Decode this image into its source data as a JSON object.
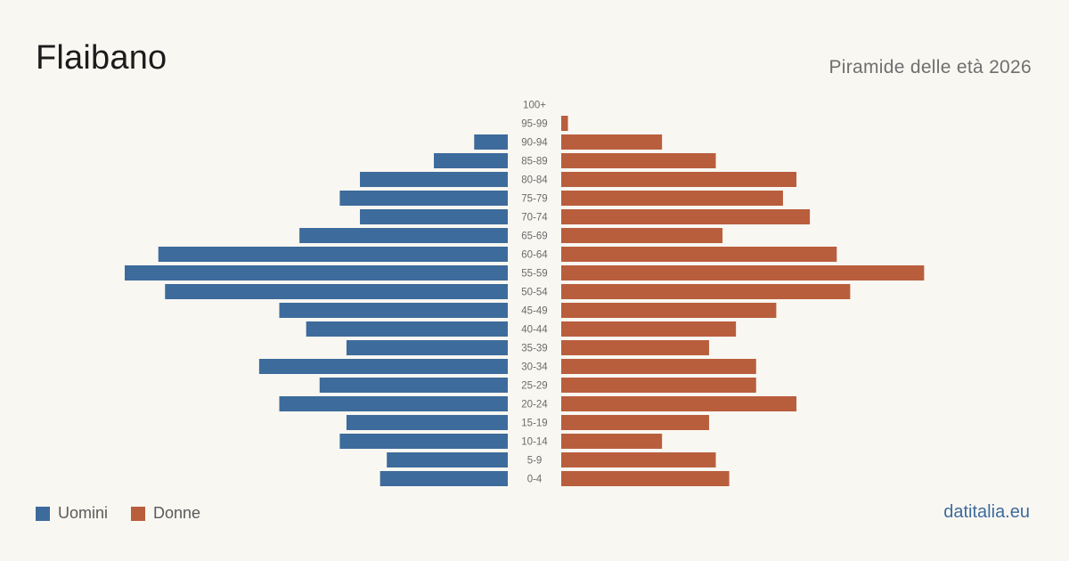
{
  "header": {
    "title": "Flaibano",
    "subtitle": "Piramide delle età 2026"
  },
  "legend": {
    "men_label": "Uomini",
    "women_label": "Donne"
  },
  "footer": {
    "brand": "datitalia.eu"
  },
  "colors": {
    "men": "#3d6b9c",
    "women": "#b95e3d",
    "background": "#f9f7f2",
    "age_label": "#6b6b6b"
  },
  "chart_data": {
    "type": "bar",
    "orientation": "horizontal-population-pyramid",
    "categories": [
      "100+",
      "95-99",
      "90-94",
      "85-89",
      "80-84",
      "75-79",
      "70-74",
      "65-69",
      "60-64",
      "55-59",
      "50-54",
      "45-49",
      "40-44",
      "35-39",
      "30-34",
      "25-29",
      "20-24",
      "15-19",
      "10-14",
      "5-9",
      "0-4"
    ],
    "series": [
      {
        "name": "Uomini",
        "values": [
          0,
          0,
          5,
          11,
          22,
          25,
          22,
          31,
          52,
          57,
          51,
          34,
          30,
          24,
          37,
          28,
          34,
          24,
          25,
          18,
          19
        ]
      },
      {
        "name": "Donne",
        "values": [
          0,
          1,
          15,
          23,
          35,
          33,
          37,
          24,
          41,
          54,
          43,
          32,
          26,
          22,
          29,
          29,
          35,
          22,
          15,
          23,
          25
        ]
      }
    ],
    "xlim": [
      0,
      57
    ],
    "grid": false,
    "legend_position": "bottom-left"
  }
}
